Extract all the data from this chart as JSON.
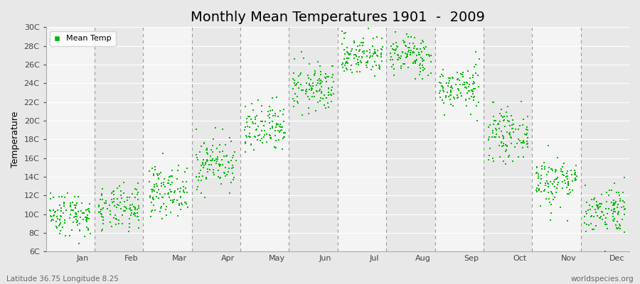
{
  "title": "Monthly Mean Temperatures 1901  -  2009",
  "ylabel": "Temperature",
  "xlabel_labels": [
    "Jan",
    "Feb",
    "Mar",
    "Apr",
    "May",
    "Jun",
    "Jul",
    "Aug",
    "Sep",
    "Oct",
    "Nov",
    "Dec"
  ],
  "ytick_labels": [
    "6C",
    "8C",
    "10C",
    "12C",
    "14C",
    "16C",
    "18C",
    "20C",
    "22C",
    "24C",
    "26C",
    "28C",
    "30C"
  ],
  "ytick_values": [
    6,
    8,
    10,
    12,
    14,
    16,
    18,
    20,
    22,
    24,
    26,
    28,
    30
  ],
  "ylim": [
    6,
    30
  ],
  "dot_color": "#00bb00",
  "dot_size": 2.5,
  "bg_color_even": "#e8e8e8",
  "bg_color_odd": "#f4f4f4",
  "fig_bg": "#e8e8e8",
  "vline_color": "#999999",
  "legend_label": "Mean Temp",
  "footer_left": "Latitude 36.75 Longitude 8.25",
  "footer_right": "worldspecies.org",
  "title_fontsize": 14,
  "axis_label_fontsize": 9,
  "tick_fontsize": 8,
  "footer_fontsize": 7.5,
  "monthly_means": [
    10.0,
    10.5,
    12.5,
    15.5,
    19.0,
    23.5,
    27.0,
    27.0,
    23.5,
    18.5,
    13.5,
    10.5
  ],
  "monthly_stds": [
    1.2,
    1.2,
    1.3,
    1.4,
    1.4,
    1.3,
    1.1,
    1.1,
    1.2,
    1.3,
    1.4,
    1.3
  ],
  "n_years": 109,
  "seed": 42
}
